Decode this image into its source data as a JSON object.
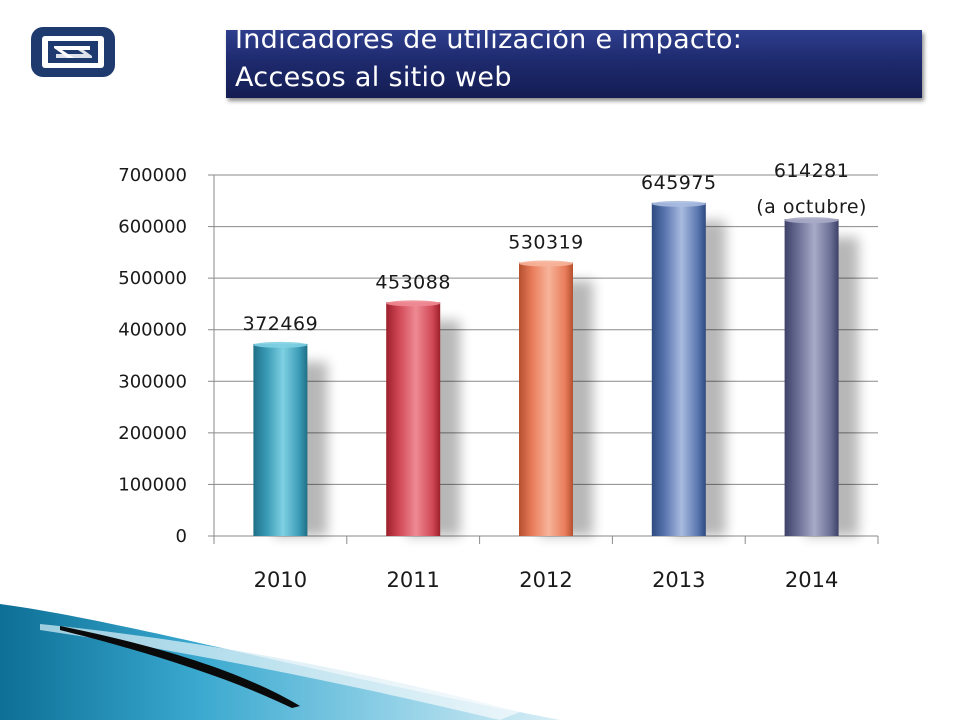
{
  "title": {
    "line1": "Indicadores de utilización e impacto:",
    "line2": "Accesos al sitio web"
  },
  "chart_data": {
    "type": "bar",
    "categories": [
      "2010",
      "2011",
      "2012",
      "2013",
      "2014"
    ],
    "values": [
      372469,
      453088,
      530319,
      645975,
      614281
    ],
    "data_labels": [
      "372469",
      "453088",
      "530319",
      "645975",
      "614281"
    ],
    "annotations": [
      "",
      "",
      "",
      "",
      "(a octubre)"
    ],
    "ylim": [
      0,
      700000
    ],
    "yticks": [
      0,
      100000,
      200000,
      300000,
      400000,
      500000,
      600000,
      700000
    ],
    "grid": true,
    "legend": "none",
    "xlabel": "",
    "ylabel": "",
    "bar_colors": [
      [
        "#7fd0e2",
        "#3a9bb6",
        "#1f6f86"
      ],
      [
        "#ee8a93",
        "#d24a58",
        "#9e1f2c"
      ],
      [
        "#f6b49a",
        "#ea7d5c",
        "#b4502e"
      ],
      [
        "#a9bbe0",
        "#5b77b0",
        "#2e4a80"
      ],
      [
        "#a8abc7",
        "#6b6f95",
        "#3d4167"
      ]
    ]
  },
  "colors": {
    "banner": "#1e2a6e",
    "logo": "#1f3a6e",
    "footer_teal": "#1b8fb6",
    "footer_dark": "#0a0a0a"
  }
}
